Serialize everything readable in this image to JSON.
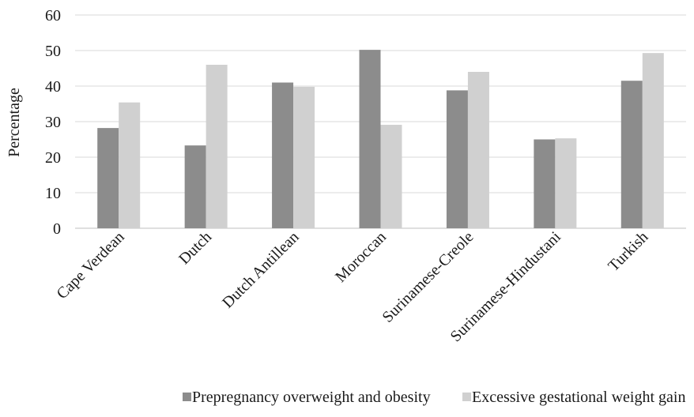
{
  "chart_data": {
    "type": "bar",
    "title": "",
    "xlabel": "",
    "ylabel": "Percentage",
    "ylim": [
      0,
      60
    ],
    "yticks": [
      0,
      10,
      20,
      30,
      40,
      50,
      60
    ],
    "grid": "horizontal",
    "legend_position": "bottom",
    "categories": [
      "Cape Verdean",
      "Dutch",
      "Dutch Antillean",
      "Moroccan",
      "Surinamese-Creole",
      "Surinamese-Hindustani",
      "Turkish"
    ],
    "series": [
      {
        "name": "Prepregnancy overweight and obesity",
        "color": "#8c8c8c",
        "values": [
          28.2,
          23.3,
          41.0,
          50.2,
          38.8,
          25.0,
          41.5
        ]
      },
      {
        "name": "Excessive gestational weight gain",
        "color": "#d0d0d0",
        "values": [
          35.4,
          46.0,
          39.8,
          29.1,
          44.0,
          25.3,
          49.3
        ]
      }
    ],
    "colors": {
      "grid": "#d9d9d9",
      "axis": "#bfbfbf",
      "text": "#1a1a1a"
    }
  }
}
